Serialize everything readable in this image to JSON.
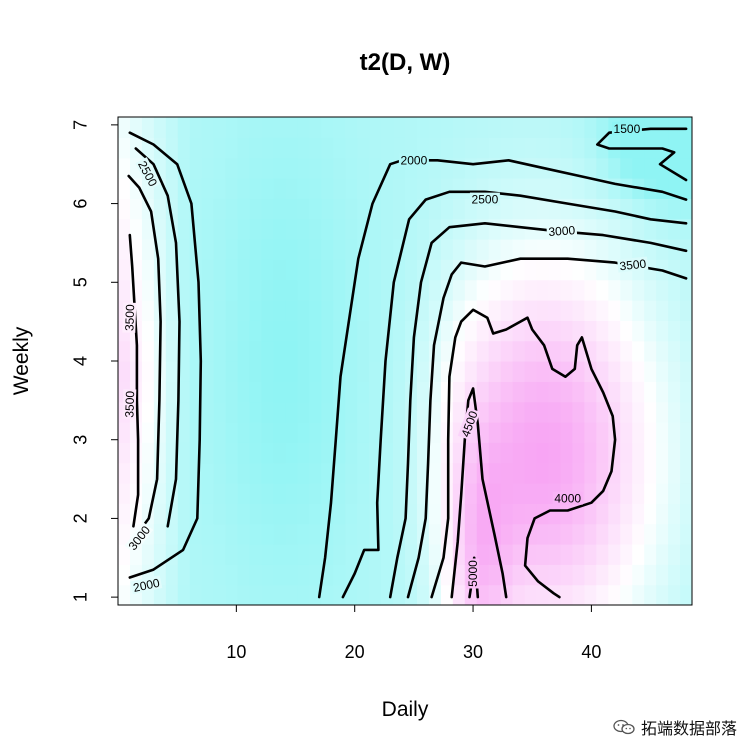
{
  "chart_data": {
    "type": "heatmap",
    "title": "t2(D, W)",
    "xlabel": "Daily",
    "ylabel": "Weekly",
    "xlim": [
      0,
      48.5
    ],
    "ylim": [
      0.9,
      7.1
    ],
    "xticks": [
      10,
      20,
      30,
      40
    ],
    "yticks": [
      1,
      2,
      3,
      4,
      5,
      6,
      7
    ],
    "color_scale": {
      "low": "#8ff4f4",
      "mid": "#ffffff",
      "high": "#f586f0",
      "low_value": 1400,
      "mid_value": 2700,
      "high_value": 5000
    },
    "contours": [
      {
        "level": 2000,
        "label": "2000",
        "points": [
          [
            1,
            1.25
          ],
          [
            3,
            1.35
          ],
          [
            5.5,
            1.6
          ],
          [
            6.7,
            2.0
          ],
          [
            6.9,
            3.0
          ],
          [
            7,
            4.0
          ],
          [
            6.8,
            5.0
          ],
          [
            6.2,
            6.0
          ],
          [
            5,
            6.5
          ],
          [
            3,
            6.75
          ],
          [
            1,
            6.9
          ]
        ]
      },
      {
        "level": 2500,
        "label": "2500",
        "points": [
          [
            4.2,
            1.9
          ],
          [
            4.9,
            2.5
          ],
          [
            5.1,
            3.5
          ],
          [
            5.2,
            4.5
          ],
          [
            4.9,
            5.5
          ],
          [
            4.2,
            6.1
          ],
          [
            3,
            6.5
          ],
          [
            1.5,
            6.7
          ]
        ]
      },
      {
        "level": 3000,
        "label": "3000",
        "points": [
          [
            1.6,
            1.8
          ],
          [
            2.6,
            2.0
          ],
          [
            3.3,
            2.5
          ],
          [
            3.5,
            3.5
          ],
          [
            3.6,
            4.5
          ],
          [
            3.4,
            5.3
          ],
          [
            2.8,
            5.9
          ],
          [
            1.8,
            6.2
          ],
          [
            0.9,
            6.35
          ]
        ]
      },
      {
        "level": 3500,
        "label": "3500",
        "points": [
          [
            1.3,
            1.9
          ],
          [
            1.7,
            2.3
          ],
          [
            1.7,
            3.0
          ],
          [
            1.6,
            3.5
          ],
          [
            1.6,
            4.2
          ],
          [
            1.2,
            5.2
          ],
          [
            1,
            5.6
          ]
        ]
      },
      {
        "level": 2000,
        "label": "2000",
        "points": [
          [
            17,
            1.0
          ],
          [
            17.5,
            1.5
          ],
          [
            18,
            2.2
          ],
          [
            18.4,
            3.0
          ],
          [
            18.8,
            3.8
          ],
          [
            19.5,
            4.5
          ],
          [
            20.3,
            5.3
          ],
          [
            21.5,
            6.0
          ],
          [
            23,
            6.5
          ],
          [
            24,
            6.55
          ],
          [
            27,
            6.55
          ],
          [
            30,
            6.5
          ],
          [
            33,
            6.55
          ],
          [
            36,
            6.45
          ],
          [
            39,
            6.35
          ],
          [
            42,
            6.25
          ],
          [
            46,
            6.15
          ],
          [
            48,
            6.05
          ]
        ]
      },
      {
        "level": 1500,
        "label": "1500",
        "points": [
          [
            48,
            6.95
          ],
          [
            45,
            6.95
          ],
          [
            41.5,
            6.9
          ],
          [
            40.5,
            6.75
          ],
          [
            41.5,
            6.7
          ],
          [
            46,
            6.7
          ],
          [
            47,
            6.65
          ],
          [
            45.8,
            6.5
          ],
          [
            48,
            6.3
          ]
        ]
      },
      {
        "level": 2500,
        "label": "2500",
        "points": [
          [
            19,
            1.0
          ],
          [
            20,
            1.3
          ],
          [
            20.8,
            1.6
          ],
          [
            22,
            1.6
          ],
          [
            21.9,
            2.2
          ],
          [
            22.2,
            3.0
          ],
          [
            22.6,
            4.0
          ],
          [
            23.3,
            5.0
          ],
          [
            24.6,
            5.8
          ],
          [
            26,
            6.05
          ],
          [
            28,
            6.15
          ],
          [
            31,
            6.15
          ],
          [
            34,
            6.1
          ],
          [
            38,
            6.0
          ],
          [
            42,
            5.9
          ],
          [
            45,
            5.8
          ],
          [
            48,
            5.75
          ]
        ]
      },
      {
        "level": 3000,
        "label": "3000",
        "points": [
          [
            23,
            1.0
          ],
          [
            23.6,
            1.5
          ],
          [
            24.3,
            2.0
          ],
          [
            24.5,
            2.7
          ],
          [
            24.7,
            3.5
          ],
          [
            25,
            4.3
          ],
          [
            25.6,
            5.0
          ],
          [
            26.5,
            5.5
          ],
          [
            28,
            5.7
          ],
          [
            31,
            5.75
          ],
          [
            34,
            5.7
          ],
          [
            37,
            5.65
          ],
          [
            41,
            5.6
          ],
          [
            45,
            5.5
          ],
          [
            48,
            5.4
          ]
        ]
      },
      {
        "level": 3500,
        "label": "3500",
        "points": [
          [
            24.5,
            1.0
          ],
          [
            25.4,
            1.5
          ],
          [
            26,
            2.0
          ],
          [
            26.2,
            2.7
          ],
          [
            26.4,
            3.5
          ],
          [
            26.7,
            4.2
          ],
          [
            27.5,
            4.8
          ],
          [
            28.2,
            5.1
          ],
          [
            29,
            5.25
          ],
          [
            31,
            5.2
          ],
          [
            34,
            5.3
          ],
          [
            38,
            5.3
          ],
          [
            42,
            5.25
          ],
          [
            46,
            5.15
          ],
          [
            48,
            5.05
          ]
        ]
      },
      {
        "level": 4000,
        "label": "4000",
        "points": [
          [
            26.5,
            1.0
          ],
          [
            27.5,
            1.5
          ],
          [
            27.9,
            2.0
          ],
          [
            27.9,
            3.0
          ],
          [
            28,
            3.8
          ],
          [
            28.5,
            4.3
          ],
          [
            29,
            4.5
          ],
          [
            30,
            4.65
          ],
          [
            31.2,
            4.55
          ],
          [
            31.7,
            4.35
          ],
          [
            32.8,
            4.4
          ],
          [
            34,
            4.5
          ],
          [
            34.6,
            4.55
          ],
          [
            35,
            4.4
          ],
          [
            36,
            4.2
          ],
          [
            36.7,
            3.9
          ],
          [
            37.8,
            3.8
          ],
          [
            38.6,
            3.9
          ],
          [
            38.8,
            4.2
          ],
          [
            39.2,
            4.3
          ],
          [
            40,
            3.9
          ],
          [
            41,
            3.6
          ],
          [
            41.8,
            3.3
          ],
          [
            42,
            3.0
          ],
          [
            41.7,
            2.6
          ],
          [
            41,
            2.35
          ],
          [
            40,
            2.2
          ],
          [
            38,
            2.1
          ],
          [
            36.5,
            2.1
          ],
          [
            35.2,
            2.0
          ],
          [
            34.6,
            1.75
          ],
          [
            34.4,
            1.4
          ],
          [
            35.5,
            1.2
          ],
          [
            36.8,
            1.05
          ],
          [
            37.3,
            1.0
          ]
        ]
      },
      {
        "level": 4500,
        "label": "4500",
        "points": [
          [
            28.2,
            1.0
          ],
          [
            28.7,
            1.7
          ],
          [
            29,
            2.3
          ],
          [
            29.3,
            3.0
          ],
          [
            29.6,
            3.5
          ],
          [
            30,
            3.65
          ],
          [
            30.4,
            3.2
          ],
          [
            30.8,
            2.5
          ],
          [
            31.8,
            1.8
          ],
          [
            32.5,
            1.3
          ],
          [
            32.8,
            1.0
          ]
        ]
      },
      {
        "level": 5000,
        "label": "5000",
        "points": [
          [
            29.7,
            1.0
          ],
          [
            29.9,
            1.2
          ],
          [
            30.1,
            1.5
          ],
          [
            30.3,
            1.2
          ],
          [
            30.4,
            1.0
          ]
        ]
      }
    ],
    "contour_labels": [
      {
        "text": "2000",
        "x": 2.4,
        "y": 1.15,
        "angle": -12
      },
      {
        "text": "3000",
        "x": 1.8,
        "y": 1.75,
        "angle": -52
      },
      {
        "text": "3500",
        "x": 1.0,
        "y": 3.45,
        "angle": -88
      },
      {
        "text": "3500",
        "x": 1.0,
        "y": 4.55,
        "angle": -88
      },
      {
        "text": "2500",
        "x": 2.5,
        "y": 6.38,
        "angle": 62
      },
      {
        "text": "2000",
        "x": 25.0,
        "y": 6.55,
        "angle": 0
      },
      {
        "text": "2500",
        "x": 31.0,
        "y": 6.05,
        "angle": 0
      },
      {
        "text": "3000",
        "x": 37.5,
        "y": 5.65,
        "angle": -4
      },
      {
        "text": "3500",
        "x": 43.5,
        "y": 5.22,
        "angle": -6
      },
      {
        "text": "1500",
        "x": 43.0,
        "y": 6.95,
        "angle": 0
      },
      {
        "text": "4000",
        "x": 38.0,
        "y": 2.25,
        "angle": 0
      },
      {
        "text": "4500",
        "x": 29.7,
        "y": 3.2,
        "angle": -70
      },
      {
        "text": "5000",
        "x": 30.0,
        "y": 1.3,
        "angle": -90
      }
    ]
  },
  "watermark": {
    "text": "拓端数据部落",
    "icon": "wechat-icon"
  }
}
